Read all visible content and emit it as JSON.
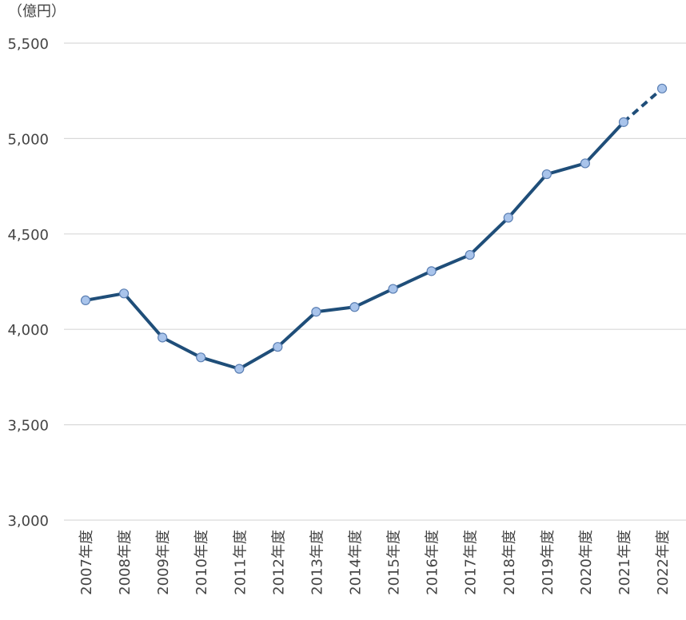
{
  "chart_data": {
    "type": "line",
    "title": "",
    "xlabel": "",
    "ylabel": "（億円）",
    "ylim": [
      3000,
      5500
    ],
    "yticks": [
      3000,
      3500,
      4000,
      4500,
      5000,
      5500
    ],
    "ytick_labels": [
      "3,000",
      "3,500",
      "4,000",
      "4,500",
      "5,000",
      "5,500"
    ],
    "grid": true,
    "legend": "none",
    "categories": [
      "2007年度",
      "2008年度",
      "2009年度",
      "2010年度",
      "2011年度",
      "2012年度",
      "2013年度",
      "2014年度",
      "2015年度",
      "2016年度",
      "2017年度",
      "2018年度",
      "2019年度",
      "2020年度",
      "2021年度",
      "2022年度"
    ],
    "series": [
      {
        "values": [
          4152,
          4188,
          3957,
          3853,
          3793,
          3908,
          4092,
          4117,
          4212,
          4305,
          4390,
          4585,
          4813,
          4870,
          5086,
          5262
        ],
        "line_color": "#1f4e79",
        "marker_color": "#a9c4eb",
        "dashed_last_segment": true
      }
    ]
  }
}
